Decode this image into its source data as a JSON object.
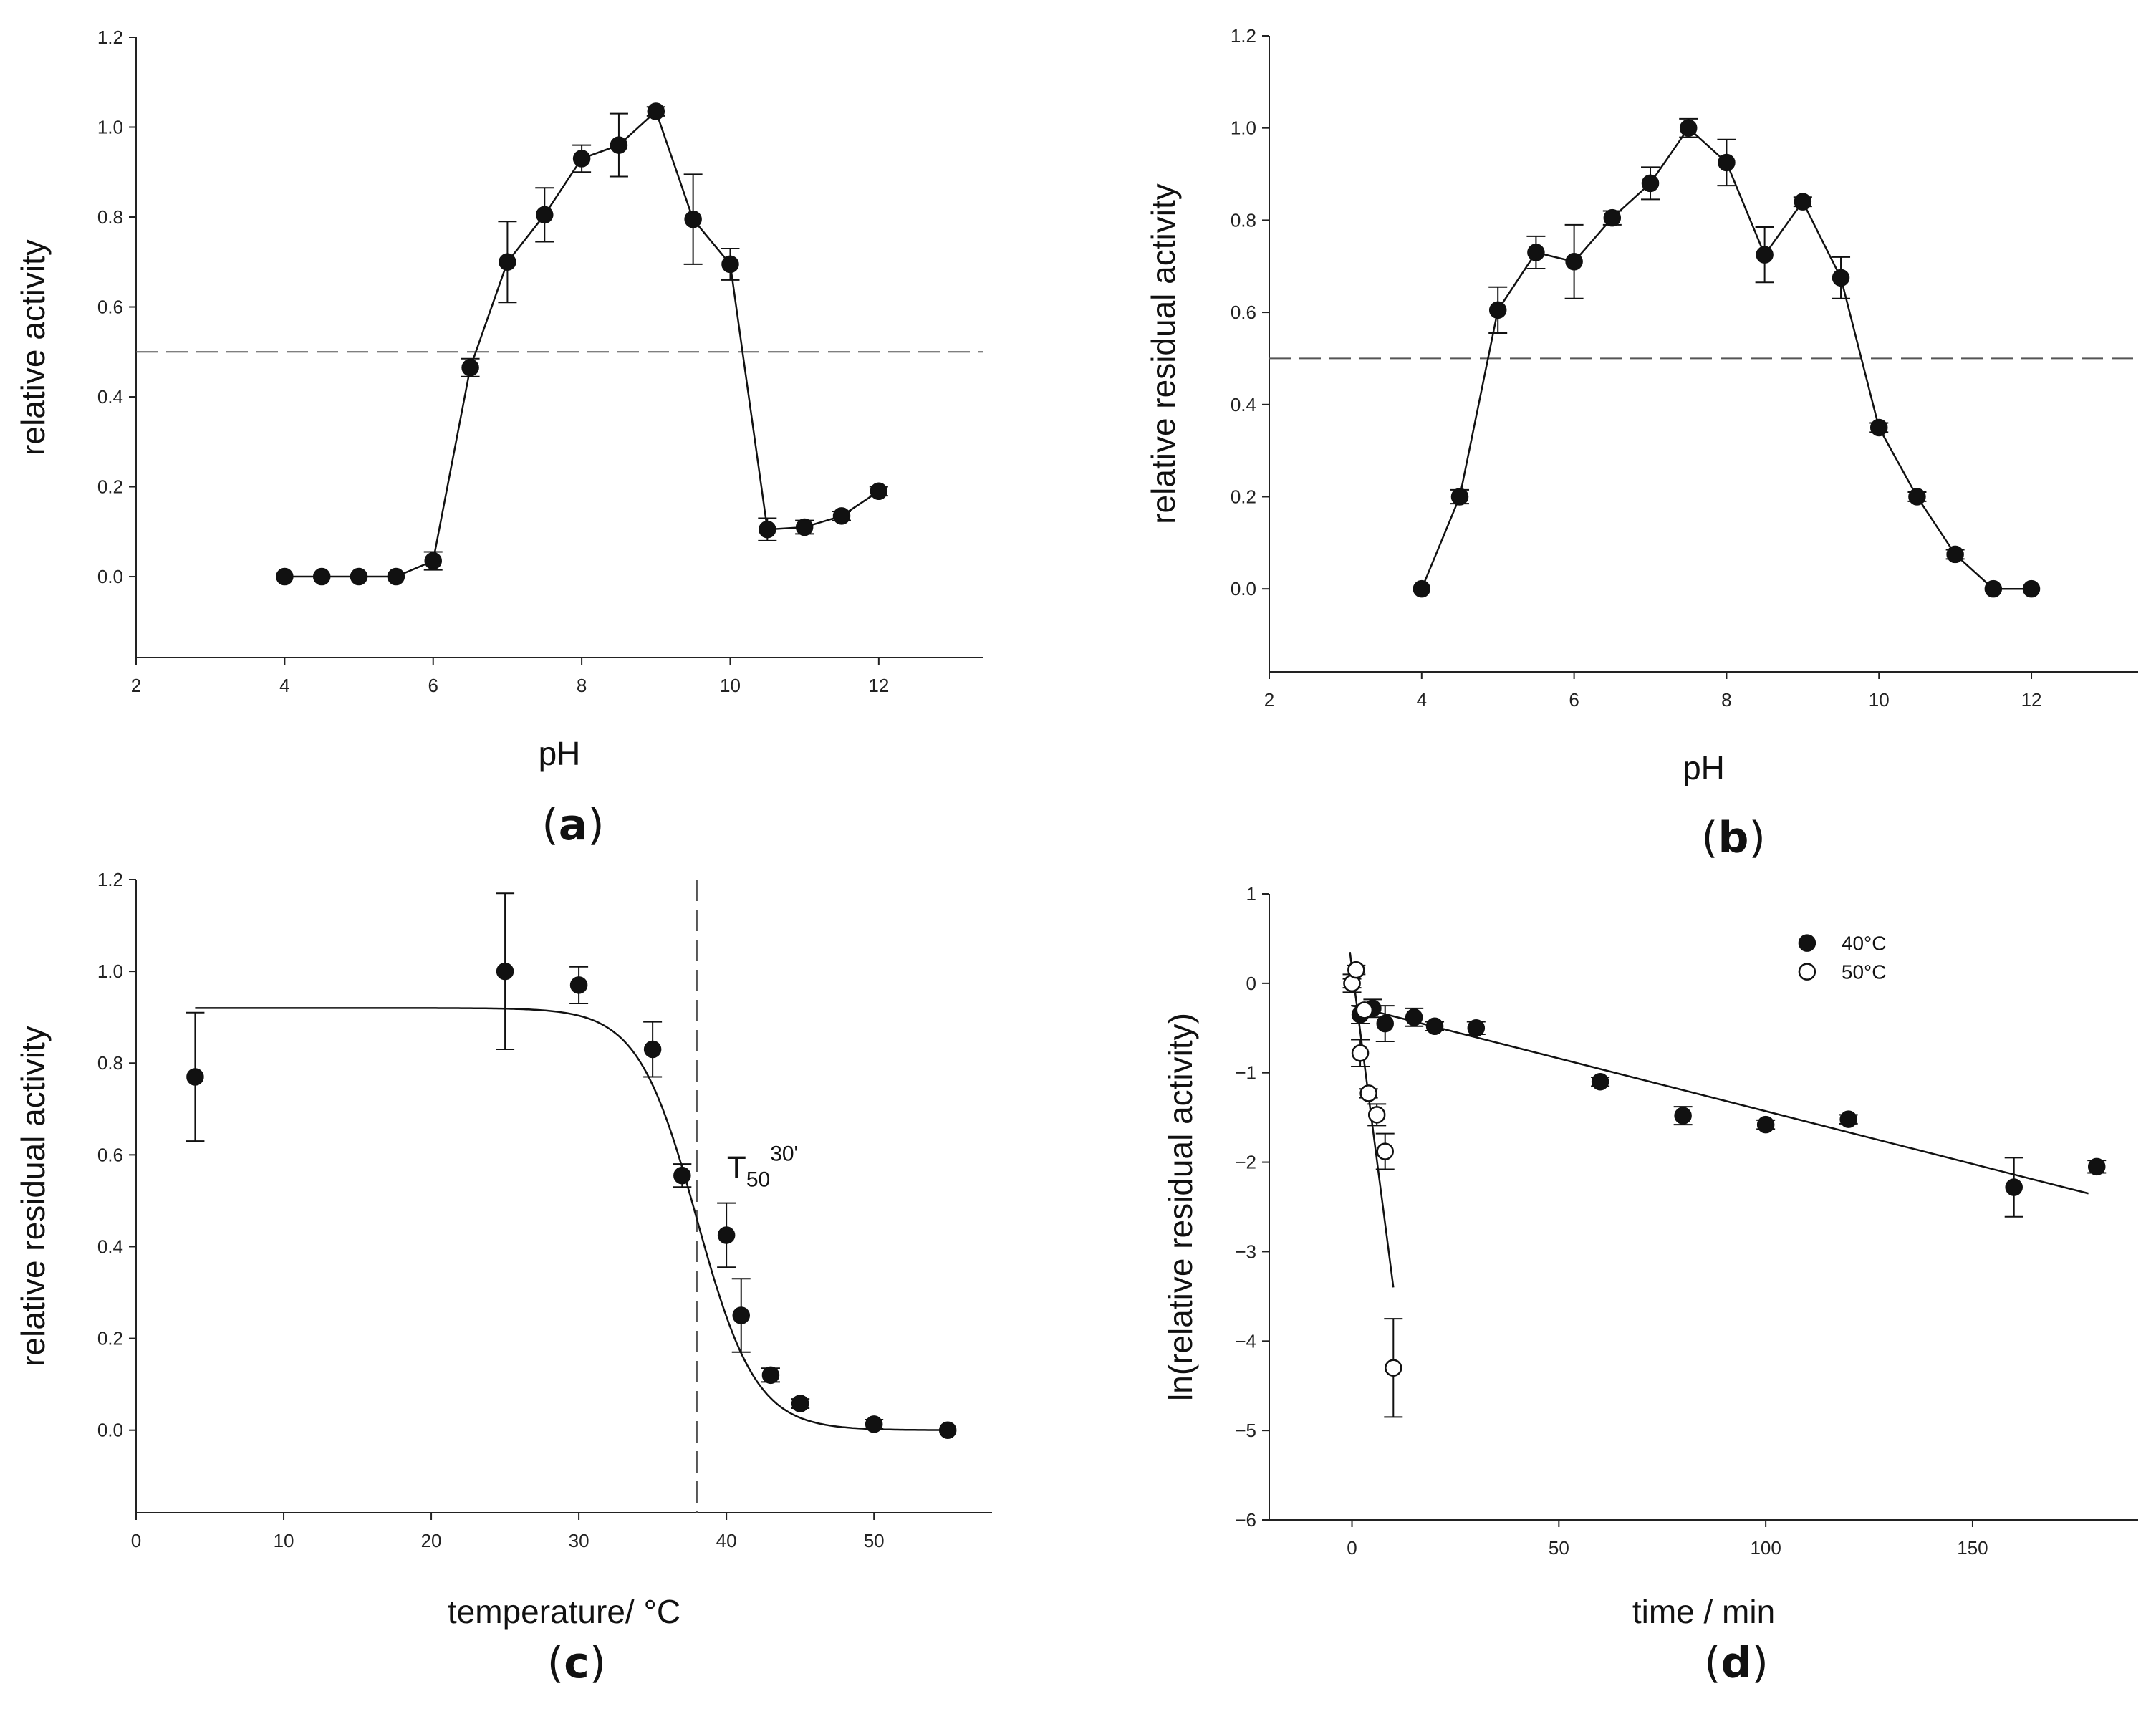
{
  "chart_data": [
    {
      "id": "a",
      "type": "line",
      "panel_label": "a",
      "xlabel": "pH",
      "ylabel": "relative activity",
      "xlim": [
        2,
        13.4
      ],
      "ylim": [
        -0.18,
        1.2
      ],
      "xticks": [
        2,
        4,
        6,
        8,
        10,
        12
      ],
      "yticks": [
        0.0,
        0.2,
        0.4,
        0.6,
        0.8,
        1.0,
        1.2
      ],
      "tick_labels_x": [
        "2",
        "4",
        "6",
        "8",
        "10",
        "12"
      ],
      "tick_labels_y": [
        "0.0",
        "0.2",
        "0.4",
        "0.6",
        "0.8",
        "1.0",
        "1.2"
      ],
      "reference_line": {
        "orientation": "horizontal",
        "value": 0.5,
        "style": "dashed"
      },
      "series": [
        {
          "name": "relative activity",
          "marker": "filled-circle",
          "connect": true,
          "x": [
            4,
            4.5,
            5,
            5.5,
            6,
            6.5,
            7,
            7.5,
            8,
            8.5,
            9,
            9.5,
            10,
            10.5,
            11,
            11.5,
            12
          ],
          "y": [
            0.0,
            0.0,
            0.0,
            0.0,
            0.035,
            0.465,
            0.7,
            0.805,
            0.93,
            0.96,
            1.035,
            0.795,
            0.695,
            0.105,
            0.11,
            0.135,
            0.19
          ],
          "err": [
            0.0,
            0.0,
            0.0,
            0.0,
            0.02,
            0.02,
            0.09,
            0.06,
            0.03,
            0.07,
            0.01,
            0.1,
            0.035,
            0.025,
            0.015,
            0.01,
            0.01
          ]
        }
      ]
    },
    {
      "id": "b",
      "type": "line",
      "panel_label": "b",
      "xlabel": "pH",
      "ylabel": "relative residual activity",
      "xlim": [
        2,
        13.4
      ],
      "ylim": [
        -0.18,
        1.2
      ],
      "xticks": [
        2,
        4,
        6,
        8,
        10,
        12
      ],
      "yticks": [
        0.0,
        0.2,
        0.4,
        0.6,
        0.8,
        1.0,
        1.2
      ],
      "tick_labels_x": [
        "2",
        "4",
        "6",
        "8",
        "10",
        "12"
      ],
      "tick_labels_y": [
        "0.0",
        "0.2",
        "0.4",
        "0.6",
        "0.8",
        "1.0",
        "1.2"
      ],
      "reference_line": {
        "orientation": "horizontal",
        "value": 0.5,
        "style": "dashed"
      },
      "series": [
        {
          "name": "relative residual activity",
          "marker": "filled-circle",
          "connect": true,
          "x": [
            4,
            4.5,
            5,
            5.5,
            6,
            6.5,
            7,
            7.5,
            8,
            8.5,
            9,
            9.5,
            10,
            10.5,
            11,
            11.5,
            12
          ],
          "y": [
            0.0,
            0.2,
            0.605,
            0.73,
            0.71,
            0.805,
            0.88,
            1.0,
            0.925,
            0.725,
            0.84,
            0.675,
            0.35,
            0.2,
            0.075,
            0.0,
            0.0
          ],
          "err": [
            0.0,
            0.015,
            0.05,
            0.035,
            0.08,
            0.015,
            0.035,
            0.02,
            0.05,
            0.06,
            0.01,
            0.045,
            0.01,
            0.01,
            0.01,
            0.0,
            0.0
          ]
        }
      ]
    },
    {
      "id": "c",
      "type": "scatter",
      "panel_label": "c",
      "xlabel": "temperature/ °C",
      "ylabel": "relative residual activity",
      "xlim": [
        0,
        58
      ],
      "ylim": [
        -0.18,
        1.2
      ],
      "xticks": [
        0,
        10,
        20,
        30,
        40,
        50
      ],
      "yticks": [
        0.0,
        0.2,
        0.4,
        0.6,
        0.8,
        1.0,
        1.2
      ],
      "tick_labels_x": [
        "0",
        "10",
        "20",
        "30",
        "40",
        "50"
      ],
      "tick_labels_y": [
        "0.0",
        "0.2",
        "0.4",
        "0.6",
        "0.8",
        "1.0",
        "1.2"
      ],
      "reference_line": {
        "orientation": "vertical",
        "value": 38,
        "style": "dashed"
      },
      "annotation": {
        "base": "T",
        "sub": "50",
        "sup": "30'"
      },
      "fit": {
        "model": "sigmoid",
        "top": 0.92,
        "bottom": 0.0,
        "midpoint": 38,
        "slope": 2.0,
        "x_range": [
          4,
          55
        ]
      },
      "series": [
        {
          "name": "residual activity",
          "marker": "filled-circle",
          "connect": false,
          "x": [
            4,
            25,
            30,
            35,
            37,
            40,
            41,
            43,
            45,
            50,
            55
          ],
          "y": [
            0.77,
            1.0,
            0.97,
            0.83,
            0.555,
            0.425,
            0.25,
            0.12,
            0.058,
            0.013,
            0.0
          ],
          "err": [
            0.14,
            0.17,
            0.04,
            0.06,
            0.025,
            0.07,
            0.08,
            0.015,
            0.01,
            0.01,
            0.0
          ]
        }
      ]
    },
    {
      "id": "d",
      "type": "scatter",
      "panel_label": "d",
      "xlabel": "time / min",
      "ylabel": "ln(relative residual activity)",
      "xlim": [
        -20,
        190
      ],
      "ylim": [
        -6,
        1
      ],
      "xticks": [
        0,
        50,
        100,
        150
      ],
      "yticks": [
        -6,
        -5,
        -4,
        -3,
        -2,
        -1,
        0,
        1
      ],
      "tick_labels_x": [
        "0",
        "50",
        "100",
        "150"
      ],
      "tick_labels_y": [
        "−6",
        "−5",
        "−4",
        "−3",
        "−2",
        "−1",
        "0",
        "1"
      ],
      "legend": {
        "position": "top-right",
        "entries": [
          "40°C",
          "50°C"
        ]
      },
      "series": [
        {
          "name": "40°C",
          "marker": "filled-circle",
          "connect": false,
          "x": [
            0,
            2,
            5,
            8,
            15,
            20,
            30,
            60,
            80,
            100,
            120,
            160,
            180
          ],
          "y": [
            0.0,
            -0.35,
            -0.28,
            -0.45,
            -0.38,
            -0.48,
            -0.5,
            -1.1,
            -1.48,
            -1.58,
            -1.52,
            -2.28,
            -2.05
          ],
          "err": [
            0.1,
            0.1,
            0.1,
            0.2,
            0.1,
            0.05,
            0.07,
            0.05,
            0.1,
            0.05,
            0.05,
            0.33,
            0.07
          ],
          "fit": {
            "x": [
              0,
              178
            ],
            "y": [
              -0.25,
              -2.35
            ]
          }
        },
        {
          "name": "50°C",
          "marker": "open-circle",
          "connect": false,
          "x": [
            0,
            1,
            2,
            3,
            4,
            6,
            8,
            10
          ],
          "y": [
            0.0,
            0.15,
            -0.78,
            -0.3,
            -1.23,
            -1.47,
            -1.88,
            -4.3
          ],
          "err": [
            0.05,
            0.05,
            0.15,
            0.05,
            0.05,
            0.12,
            0.2,
            0.55
          ],
          "fit": {
            "x": [
              -0.5,
              10
            ],
            "y": [
              0.35,
              -3.4
            ]
          }
        }
      ]
    }
  ]
}
